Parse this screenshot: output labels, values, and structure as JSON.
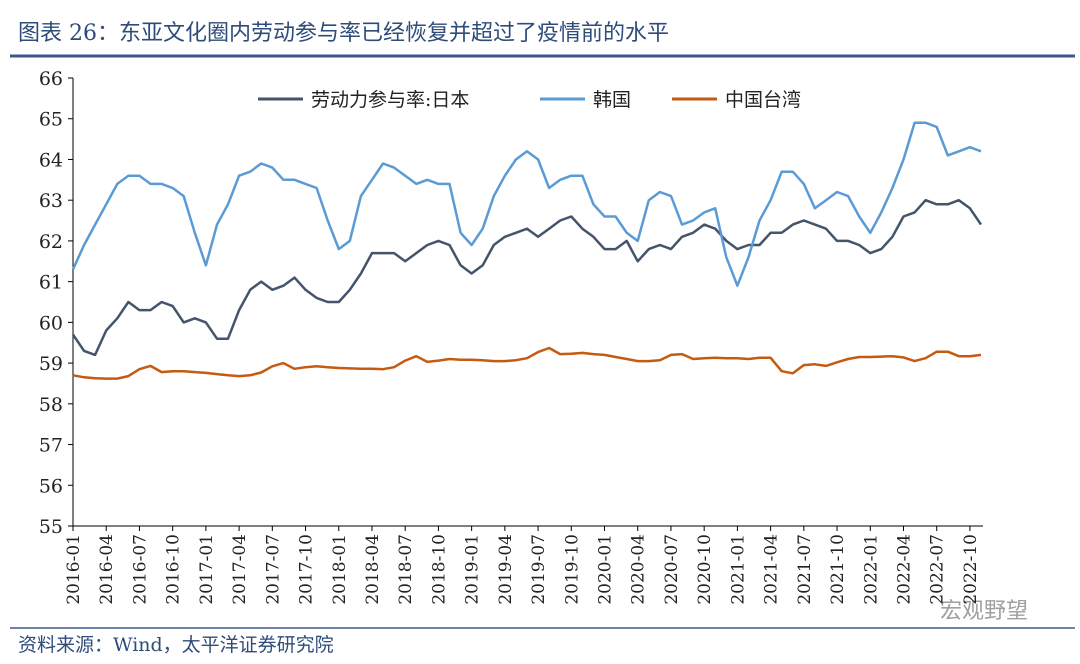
{
  "chart_data": {
    "type": "line",
    "title": "图表 26：东亚文化圈内劳动参与率已经恢复并超过了疫情前的水平",
    "source": "资料来源：Wind，太平洋证券研究院",
    "watermark": "宏观野望",
    "categories": [
      "2016-01",
      null,
      null,
      "2016-04",
      null,
      null,
      "2016-07",
      null,
      null,
      "2016-10",
      null,
      null,
      "2017-01",
      null,
      null,
      "2017-04",
      null,
      null,
      "2017-07",
      null,
      null,
      "2017-10",
      null,
      null,
      "2018-01",
      null,
      null,
      "2018-04",
      null,
      null,
      "2018-07",
      null,
      null,
      "2018-10",
      null,
      null,
      "2019-01",
      null,
      null,
      "2019-04",
      null,
      null,
      "2019-07",
      null,
      null,
      "2019-10",
      null,
      null,
      "2020-01",
      null,
      null,
      "2020-04",
      null,
      null,
      "2020-07",
      null,
      null,
      "2020-10",
      null,
      null,
      "2021-01",
      null,
      null,
      "2021-04",
      null,
      null,
      "2021-07",
      null,
      null,
      "2021-10",
      null,
      null,
      "2022-01",
      null,
      null,
      "2022-04",
      null,
      null,
      "2022-07",
      null,
      null,
      "2022-10",
      null
    ],
    "series": [
      {
        "name": "劳动力参与率:日本",
        "color": "#44546a",
        "values": [
          59.7,
          59.3,
          59.2,
          59.8,
          60.1,
          60.5,
          60.3,
          60.3,
          60.5,
          60.4,
          60.0,
          60.1,
          60.0,
          59.6,
          59.6,
          60.3,
          60.8,
          61.0,
          60.8,
          60.9,
          61.1,
          60.8,
          60.6,
          60.5,
          60.5,
          60.8,
          61.2,
          61.7,
          61.7,
          61.7,
          61.5,
          61.7,
          61.9,
          62.0,
          61.9,
          61.4,
          61.2,
          61.4,
          61.9,
          62.1,
          62.2,
          62.3,
          62.1,
          62.3,
          62.5,
          62.6,
          62.3,
          62.1,
          61.8,
          61.8,
          62.0,
          61.5,
          61.8,
          61.9,
          61.8,
          62.1,
          62.2,
          62.4,
          62.3,
          62.0,
          61.8,
          61.9,
          61.9,
          62.2,
          62.2,
          62.4,
          62.5,
          62.4,
          62.3,
          62.0,
          62.0,
          61.9,
          61.7,
          61.8,
          62.1,
          62.6,
          62.7,
          63.0,
          62.9,
          62.9,
          63.0,
          62.8,
          62.4
        ]
      },
      {
        "name": "韩国",
        "color": "#5b9bd5",
        "values": [
          61.3,
          61.9,
          62.4,
          62.9,
          63.4,
          63.6,
          63.6,
          63.4,
          63.4,
          63.3,
          63.1,
          62.2,
          61.4,
          62.4,
          62.9,
          63.6,
          63.7,
          63.9,
          63.8,
          63.5,
          63.5,
          63.4,
          63.3,
          62.5,
          61.8,
          62.0,
          63.1,
          63.5,
          63.9,
          63.8,
          63.6,
          63.4,
          63.5,
          63.4,
          63.4,
          62.2,
          61.9,
          62.3,
          63.1,
          63.6,
          64.0,
          64.2,
          64.0,
          63.3,
          63.5,
          63.6,
          63.6,
          62.9,
          62.6,
          62.6,
          62.2,
          62.0,
          63.0,
          63.2,
          63.1,
          62.4,
          62.5,
          62.7,
          62.8,
          61.6,
          60.9,
          61.6,
          62.5,
          63.0,
          63.7,
          63.7,
          63.4,
          62.8,
          63.0,
          63.2,
          63.1,
          62.6,
          62.2,
          62.7,
          63.3,
          64.0,
          64.9,
          64.9,
          64.8,
          64.1,
          64.2,
          64.3,
          64.2
        ]
      },
      {
        "name": "中国台湾",
        "color": "#c55a11",
        "values": [
          58.7,
          58.65,
          58.63,
          58.62,
          58.62,
          58.68,
          58.85,
          58.93,
          58.78,
          58.8,
          58.8,
          58.78,
          58.76,
          58.73,
          58.7,
          58.68,
          58.7,
          58.77,
          58.92,
          59.0,
          58.86,
          58.9,
          58.92,
          58.9,
          58.88,
          58.87,
          58.86,
          58.86,
          58.85,
          58.9,
          59.06,
          59.17,
          59.03,
          59.06,
          59.1,
          59.08,
          59.08,
          59.07,
          59.05,
          59.05,
          59.07,
          59.12,
          59.27,
          59.37,
          59.22,
          59.23,
          59.25,
          59.22,
          59.2,
          59.15,
          59.1,
          59.05,
          59.05,
          59.07,
          59.2,
          59.22,
          59.1,
          59.12,
          59.13,
          59.12,
          59.12,
          59.1,
          59.13,
          59.13,
          58.8,
          58.75,
          58.95,
          58.97,
          58.93,
          59.02,
          59.1,
          59.15,
          59.15,
          59.16,
          59.17,
          59.14,
          59.05,
          59.12,
          59.28,
          59.28,
          59.17,
          59.17,
          59.2
        ]
      }
    ],
    "ylim": [
      55,
      66
    ],
    "yticks": [
      55,
      56,
      57,
      58,
      59,
      60,
      61,
      62,
      63,
      64,
      65,
      66
    ],
    "grid": false,
    "legend": "top"
  }
}
